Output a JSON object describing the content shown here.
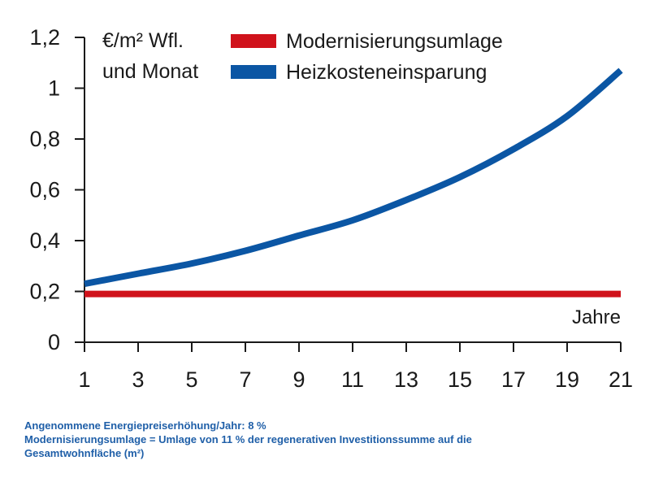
{
  "chart_data": {
    "type": "line",
    "unit_label_line1": "€/m² Wfl.",
    "unit_label_line2": "und Monat",
    "xlabel": "Jahre",
    "xlim": [
      1,
      21
    ],
    "ylim": [
      0,
      1.2
    ],
    "x_ticks": [
      1,
      3,
      5,
      7,
      9,
      11,
      13,
      15,
      17,
      19,
      21
    ],
    "x_tick_labels": [
      "1",
      "3",
      "5",
      "7",
      "9",
      "11",
      "13",
      "15",
      "17",
      "19",
      "21"
    ],
    "y_ticks": [
      0,
      0.2,
      0.4,
      0.6,
      0.8,
      1.0,
      1.2
    ],
    "y_tick_labels": [
      "0",
      "0,2",
      "0,4",
      "0,6",
      "0,8",
      "1",
      "1,2"
    ],
    "legend_position": "top",
    "series": [
      {
        "name": "Modernisierungsumlage",
        "color": "#d0121b",
        "x": [
          1,
          21
        ],
        "y": [
          0.19,
          0.19
        ]
      },
      {
        "name": "Heizkosteneinsparung",
        "color": "#0b56a4",
        "x": [
          1,
          3,
          5,
          7,
          9,
          11,
          13,
          15,
          17,
          19,
          21
        ],
        "y": [
          0.23,
          0.27,
          0.31,
          0.36,
          0.42,
          0.48,
          0.56,
          0.65,
          0.76,
          0.89,
          1.07
        ]
      }
    ]
  },
  "notes": {
    "line1": "Angenommene Energiepreiserhöhung/Jahr: 8 %",
    "line2": "Modernisierungsumlage = Umlage von 11 % der regenerativen Investitionssumme auf die",
    "line3": "Gesamtwohnfläche (m²)"
  }
}
